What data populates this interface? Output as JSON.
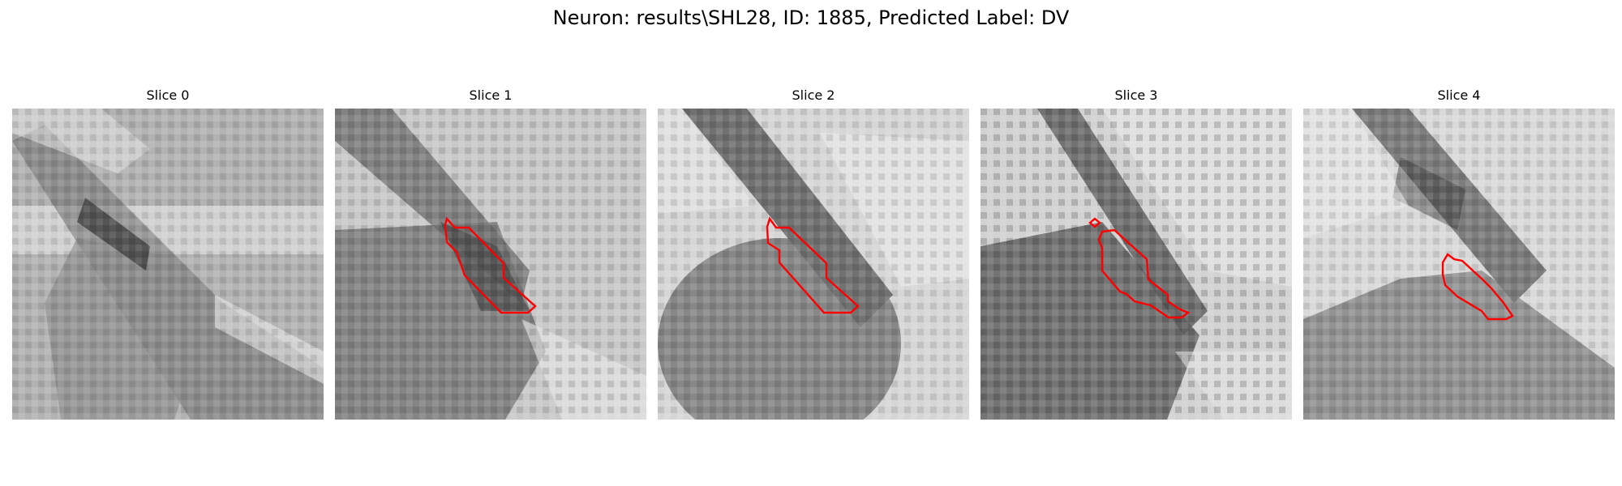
{
  "figure": {
    "title": "Neuron: results\\SHL28, ID: 1885, Predicted Label: DV"
  },
  "panels": [
    {
      "title": "Slice 0"
    },
    {
      "title": "Slice 1"
    },
    {
      "title": "Slice 2"
    },
    {
      "title": "Slice 3"
    },
    {
      "title": "Slice 4"
    }
  ],
  "colors": {
    "contour": "#ff0000"
  }
}
